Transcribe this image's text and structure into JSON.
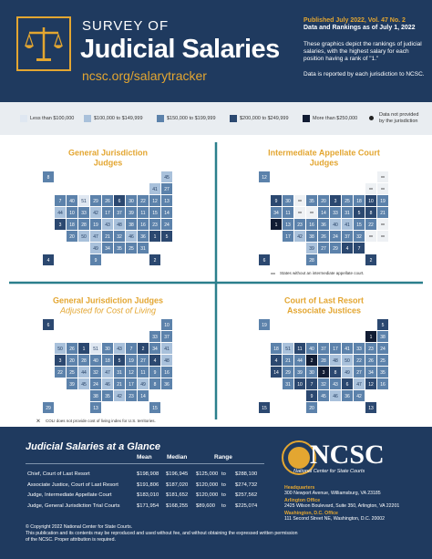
{
  "header": {
    "kicker": "SURVEY OF",
    "title": "Judicial Salaries",
    "link": "ncsc.org/salarytracker",
    "published": "Published July 2022, Vol. 47 No. 2",
    "as_of": "Data and Rankings as of July 1, 2022",
    "description": "These graphics depict the rankings of judicial salaries, with the highest salary for each position having a rank of \"1.\"",
    "note": "Data is reported by each jurisdiction to NCSC."
  },
  "legend": {
    "items": [
      {
        "label": "Less than $100,000",
        "color": "#dfe7f1"
      },
      {
        "label": "$100,000 to $149,999",
        "color": "#a9c1db"
      },
      {
        "label": "$150,000 to $199,999",
        "color": "#5c82ab"
      },
      {
        "label": "$200,000 to $249,999",
        "color": "#2b4870"
      },
      {
        "label": "More than $250,000",
        "color": "#111c33"
      },
      {
        "label": "Data not provided by the jurisdiction",
        "color": "#222222"
      }
    ]
  },
  "maps": [
    {
      "title_lines": [
        "General Jurisdiction",
        "Judges"
      ],
      "ranks": [
        8,
        45,
        41,
        27,
        7,
        40,
        51,
        29,
        26,
        6,
        30,
        22,
        12,
        13,
        44,
        10,
        33,
        42,
        17,
        37,
        39,
        11,
        15,
        14,
        3,
        18,
        28,
        19,
        43,
        48,
        38,
        16,
        23,
        24,
        20,
        50,
        47,
        21,
        32,
        46,
        36,
        1,
        5,
        49,
        34,
        35,
        25,
        31,
        4,
        9,
        2
      ],
      "levels": [
        2,
        1,
        1,
        2,
        2,
        2,
        0,
        2,
        2,
        3,
        2,
        2,
        2,
        2,
        1,
        2,
        2,
        1,
        2,
        2,
        2,
        2,
        2,
        2,
        3,
        2,
        2,
        2,
        1,
        1,
        2,
        2,
        2,
        2,
        2,
        1,
        1,
        2,
        2,
        1,
        2,
        3,
        3,
        1,
        2,
        2,
        2,
        2,
        3,
        2,
        3
      ]
    },
    {
      "title_lines": [
        "Intermediate Appellate Court",
        "Judges"
      ],
      "ranks": [
        12,
        null,
        null,
        null,
        9,
        30,
        null,
        35,
        20,
        3,
        25,
        18,
        10,
        19,
        34,
        11,
        null,
        null,
        14,
        33,
        31,
        5,
        8,
        21,
        1,
        13,
        23,
        16,
        36,
        40,
        41,
        15,
        22,
        null,
        17,
        42,
        38,
        26,
        24,
        37,
        32,
        null,
        null,
        39,
        27,
        29,
        4,
        7,
        6,
        28,
        2
      ],
      "levels": [
        2,
        null,
        null,
        null,
        3,
        2,
        null,
        2,
        2,
        3,
        2,
        2,
        3,
        2,
        2,
        2,
        null,
        null,
        2,
        2,
        2,
        3,
        3,
        2,
        4,
        2,
        2,
        2,
        2,
        1,
        1,
        2,
        2,
        null,
        2,
        1,
        2,
        2,
        2,
        2,
        2,
        null,
        null,
        1,
        2,
        2,
        3,
        3,
        3,
        2,
        3
      ],
      "note": "States without an intermediate appellate court."
    },
    {
      "title_lines": [
        "General Jurisdiction Judges",
        "Adjusted for Cost of Living"
      ],
      "ranks": [
        6,
        10,
        33,
        37,
        50,
        26,
        1,
        51,
        30,
        43,
        7,
        2,
        34,
        41,
        3,
        20,
        28,
        40,
        18,
        5,
        19,
        27,
        4,
        48,
        22,
        25,
        44,
        32,
        47,
        31,
        12,
        11,
        9,
        16,
        39,
        45,
        24,
        46,
        21,
        17,
        49,
        8,
        36,
        38,
        35,
        42,
        23,
        14,
        29,
        13,
        15
      ],
      "levels": [
        3,
        2,
        2,
        2,
        1,
        2,
        3,
        0,
        2,
        1,
        2,
        3,
        2,
        1,
        3,
        2,
        2,
        2,
        2,
        3,
        2,
        2,
        3,
        1,
        2,
        2,
        1,
        2,
        1,
        2,
        2,
        2,
        2,
        2,
        2,
        1,
        2,
        1,
        2,
        2,
        1,
        2,
        2,
        2,
        2,
        1,
        2,
        2,
        2,
        2,
        2
      ],
      "note": "COLI does not provide cost of living index for U.S. territories."
    },
    {
      "title_lines": [
        "Court of Last Resort",
        "Associate Justices"
      ],
      "ranks": [
        19,
        5,
        1,
        38,
        18,
        51,
        11,
        40,
        37,
        17,
        41,
        33,
        23,
        24,
        4,
        21,
        44,
        2,
        28,
        48,
        50,
        22,
        26,
        25,
        14,
        29,
        39,
        30,
        3,
        8,
        49,
        27,
        34,
        35,
        31,
        10,
        7,
        32,
        43,
        6,
        47,
        12,
        16,
        9,
        45,
        46,
        36,
        42,
        15,
        20,
        13
      ],
      "levels": [
        2,
        3,
        4,
        2,
        2,
        1,
        3,
        2,
        2,
        2,
        2,
        2,
        2,
        2,
        3,
        2,
        2,
        4,
        2,
        1,
        1,
        2,
        2,
        2,
        3,
        2,
        2,
        2,
        4,
        3,
        1,
        2,
        2,
        2,
        2,
        3,
        3,
        2,
        2,
        3,
        1,
        3,
        2,
        3,
        2,
        1,
        2,
        2,
        3,
        2,
        3
      ]
    }
  ],
  "glance": {
    "title": "Judicial Salaries at a Glance",
    "headers": [
      "Mean",
      "Median",
      "Range"
    ],
    "rows": [
      [
        "Chief, Court of Last Resort",
        "$198,908",
        "$196,945",
        "$125,000",
        "to",
        "$288,100"
      ],
      [
        "Associate Justice, Court of Last Resort",
        "$191,806",
        "$187,020",
        "$120,000",
        "to",
        "$274,732"
      ],
      [
        "Judge, Intermediate Appellate Court",
        "$183,010",
        "$181,652",
        "$120,000",
        "to",
        "$257,562"
      ],
      [
        "Judge, General Jurisdiction Trial Courts",
        "$171,954",
        "$168,255",
        "$89,600",
        "to",
        "$225,074"
      ]
    ]
  },
  "footer": {
    "org": "NCSC",
    "org_name": "National Center for State Courts",
    "offices": [
      {
        "name": "Headquarters",
        "address": "300 Newport Avenue, Williamsburg, VA 23185"
      },
      {
        "name": "Arlington Office",
        "address": "2425 Wilson Boulevard, Suite 350, Arlington, VA 22201"
      },
      {
        "name": "Washington, D.C. Office",
        "address": "111 Second Street NE, Washington, D.C. 20002"
      }
    ],
    "copyright": "© Copyright 2022 National Center for State Courts.",
    "permission": "This publication and its contents may be reproduced and used without fee, and without obtaining the expressed written permission of the NCSC. Proper attribution is required."
  }
}
